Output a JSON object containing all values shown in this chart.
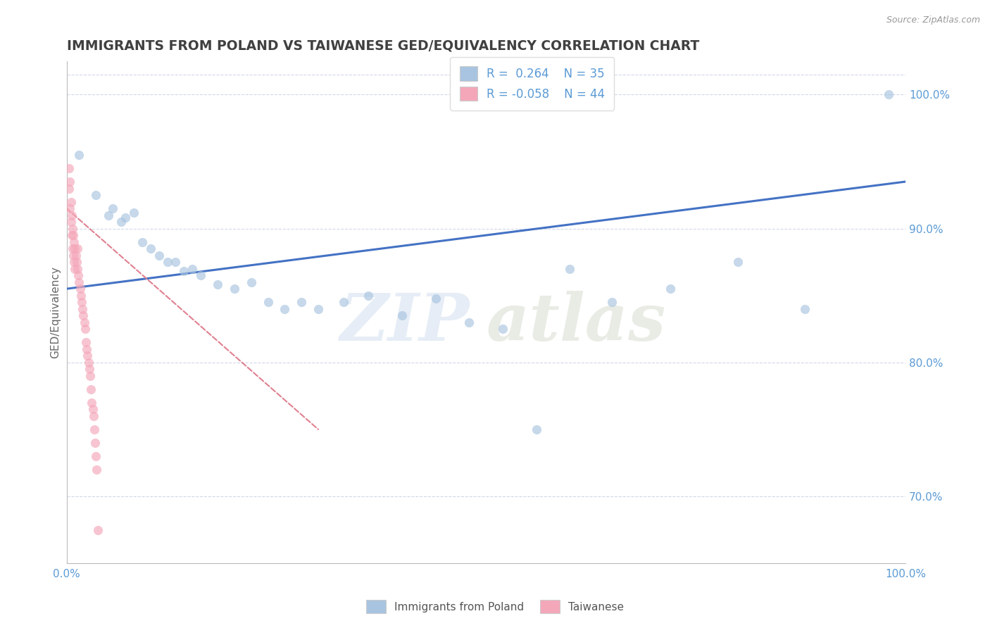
{
  "title": "IMMIGRANTS FROM POLAND VS TAIWANESE GED/EQUIVALENCY CORRELATION CHART",
  "source": "Source: ZipAtlas.com",
  "ylabel": "GED/Equivalency",
  "legend_label1": "Immigrants from Poland",
  "legend_label2": "Taiwanese",
  "r1": 0.264,
  "n1": 35,
  "r2": -0.058,
  "n2": 44,
  "blue_color": "#a8c4e0",
  "pink_color": "#f4a7b9",
  "trend_blue": "#4472c4",
  "trend_pink": "#e08090",
  "axis_color": "#5b9bd5",
  "right_tick_color": "#5b9bd5",
  "watermark_zip": "ZIP",
  "watermark_atlas": "atlas",
  "blue_scatter_x": [
    1.5,
    3.5,
    5.0,
    5.5,
    6.5,
    7.0,
    8.0,
    9.0,
    10.0,
    11.0,
    12.0,
    13.0,
    14.0,
    15.0,
    16.0,
    18.0,
    20.0,
    22.0,
    24.0,
    26.0,
    28.0,
    30.0,
    33.0,
    36.0,
    40.0,
    44.0,
    48.0,
    52.0,
    56.0,
    60.0,
    65.0,
    72.0,
    80.0,
    88.0,
    98.0
  ],
  "blue_scatter_y": [
    95.5,
    92.5,
    91.0,
    91.5,
    90.5,
    90.8,
    91.2,
    89.0,
    88.5,
    88.0,
    87.5,
    87.5,
    86.8,
    87.0,
    86.5,
    85.8,
    85.5,
    86.0,
    84.5,
    84.0,
    84.5,
    84.0,
    84.5,
    85.0,
    83.5,
    84.8,
    83.0,
    82.5,
    75.0,
    87.0,
    84.5,
    85.5,
    87.5,
    84.0,
    100.0
  ],
  "pink_scatter_x": [
    0.3,
    0.3,
    0.4,
    0.4,
    0.5,
    0.5,
    0.6,
    0.6,
    0.7,
    0.7,
    0.8,
    0.8,
    0.9,
    0.9,
    1.0,
    1.0,
    1.1,
    1.2,
    1.3,
    1.3,
    1.4,
    1.5,
    1.6,
    1.7,
    1.8,
    1.9,
    2.0,
    2.1,
    2.2,
    2.3,
    2.4,
    2.5,
    2.6,
    2.7,
    2.8,
    2.9,
    3.0,
    3.1,
    3.2,
    3.3,
    3.4,
    3.5,
    3.6,
    3.7
  ],
  "pink_scatter_y": [
    94.5,
    93.0,
    93.5,
    91.5,
    92.0,
    90.5,
    91.0,
    89.5,
    90.0,
    88.5,
    89.5,
    88.0,
    89.0,
    87.5,
    88.5,
    87.0,
    88.0,
    87.5,
    87.0,
    88.5,
    86.5,
    86.0,
    85.5,
    85.0,
    84.5,
    84.0,
    83.5,
    83.0,
    82.5,
    81.5,
    81.0,
    80.5,
    80.0,
    79.5,
    79.0,
    78.0,
    77.0,
    76.5,
    76.0,
    75.0,
    74.0,
    73.0,
    72.0,
    67.5
  ],
  "xmin": 0.0,
  "xmax": 100.0,
  "ymin": 65.0,
  "ymax": 102.5,
  "right_yticks": [
    70.0,
    80.0,
    90.0,
    100.0
  ],
  "right_yticklabels": [
    "70.0%",
    "80.0%",
    "90.0%",
    "100.0%"
  ],
  "grid_color": "#d0d8e8",
  "background_color": "#ffffff",
  "marker_size": 90,
  "marker_alpha": 0.65,
  "title_color": "#404040",
  "title_fontsize": 13.5,
  "blue_trend_start_x": 0.0,
  "blue_trend_end_x": 100.0,
  "blue_trend_start_y": 85.5,
  "blue_trend_end_y": 93.5,
  "pink_trend_start_x": 0.0,
  "pink_trend_end_x": 30.0,
  "pink_trend_start_y": 91.5,
  "pink_trend_end_y": 75.0
}
